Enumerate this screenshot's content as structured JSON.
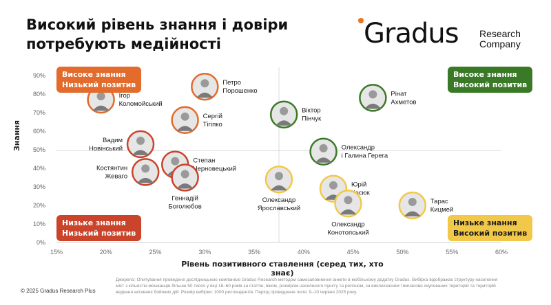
{
  "title_line1": "Високий рівень знання і довіри",
  "title_line2": "потребують медійності",
  "logo": {
    "main": "Gradus",
    "sub1": "Research",
    "sub2": "Company"
  },
  "quadrants": {
    "top_left": {
      "line1": "Високе знання",
      "line2": "Низький позитив"
    },
    "top_right": {
      "line1": "Високе знання",
      "line2": "Високий позитив"
    },
    "bottom_left": {
      "line1": "Низьке знання",
      "line2": "Низький позитив"
    },
    "bottom_right": {
      "line1": "Низьке знання",
      "line2": "Високий позитив"
    }
  },
  "footer": {
    "copyright": "© 2025 Gradus Research Plus",
    "source": "Джерело: Опитування проведене дослідницькою компанією Gradus Research методом самозаповнення анкети в мобільному додатку Gradus. Вибірка відображає структуру населення міст з кількістю мешканців більше 50 тисяч у віці 18–60 років за статтю, віком, розміром населеного пункту та регіоном, за виключенням тимчасово окупованих територій та територій ведення активних бойових дій. Розмір вибірки: 1000 респондентів. Період проведення поля: 9–10 червня 2025 року."
  },
  "colors": {
    "orange": "#e36b2c",
    "green": "#3a7a26",
    "red": "#c9442a",
    "yellow": "#f2c84b"
  },
  "chart_data": {
    "type": "scatter",
    "xlabel": "Рівень позитивного ставлення (серед тих, хто знає)",
    "ylabel": "Знання",
    "xlim": [
      15,
      60
    ],
    "ylim": [
      0,
      90
    ],
    "x_ticks": [
      "15%",
      "20%",
      "25%",
      "30%",
      "35%",
      "40%",
      "45%",
      "50%",
      "55%",
      "60%"
    ],
    "y_ticks": [
      "0%",
      "10%",
      "20%",
      "30%",
      "40%",
      "50%",
      "60%",
      "70%",
      "80%",
      "90%"
    ],
    "reference_lines": {
      "x": 37.5,
      "y": 49.5
    },
    "points": [
      {
        "name": "Петро Порошенко",
        "x": 30,
        "y": 84,
        "color": "#e36b2c"
      },
      {
        "name": "Ігор Коломойський",
        "x": 19.5,
        "y": 77,
        "color": "#e36b2c"
      },
      {
        "name": "Сергій Тігіпко",
        "x": 28,
        "y": 66,
        "color": "#e36b2c"
      },
      {
        "name": "Вадим Новінський",
        "x": 23.5,
        "y": 53,
        "color": "#c9442a"
      },
      {
        "name": "Степан Черновецький",
        "x": 27,
        "y": 42,
        "color": "#c9442a"
      },
      {
        "name": "Костянтин Жеваго",
        "x": 24,
        "y": 38,
        "color": "#c9442a"
      },
      {
        "name": "Геннадій Боголюбов",
        "x": 28,
        "y": 35,
        "color": "#c9442a"
      },
      {
        "name": "Рінат Ахметов",
        "x": 47,
        "y": 78,
        "color": "#3a7a26"
      },
      {
        "name": "Віктор Пінчук",
        "x": 38,
        "y": 69,
        "color": "#3a7a26"
      },
      {
        "name": "Олександр Ярославський",
        "x": 37.5,
        "y": 34,
        "color": "#f2c84b"
      },
      {
        "name": "Олександр і Галина Герега",
        "x": 42,
        "y": 49,
        "color": "#3a7a26"
      },
      {
        "name": "Юрій Косюк",
        "x": 43,
        "y": 29,
        "color": "#f2c84b"
      },
      {
        "name": "Олександр Конотопський",
        "x": 44.5,
        "y": 21,
        "color": "#f2c84b"
      },
      {
        "name": "Тарас Кицмей",
        "x": 51,
        "y": 20,
        "color": "#f2c84b"
      }
    ],
    "labels": [
      {
        "l1": "Петро",
        "l2": "Порошенко"
      },
      {
        "l1": "Ігор",
        "l2": "Коломойський"
      },
      {
        "l1": "Сергій",
        "l2": "Тігіпко"
      },
      {
        "l1": "Вадим",
        "l2": "Новінський"
      },
      {
        "l1": "Степан",
        "l2": "Черновецький"
      },
      {
        "l1": "Костянтин",
        "l2": "Жеваго"
      },
      {
        "l1": "Геннадій",
        "l2": "Боголюбов"
      },
      {
        "l1": "Рінат",
        "l2": "Ахметов"
      },
      {
        "l1": "Віктор",
        "l2": "Пінчук"
      },
      {
        "l1": "Олександр",
        "l2": "Ярославський"
      },
      {
        "l1": "Олександр",
        "l2": "і Галина Герега"
      },
      {
        "l1": "Юрій",
        "l2": "Косюк"
      },
      {
        "l1": "Олександр",
        "l2": "Конотопський"
      },
      {
        "l1": "Тарас",
        "l2": "Кицмей"
      }
    ]
  }
}
